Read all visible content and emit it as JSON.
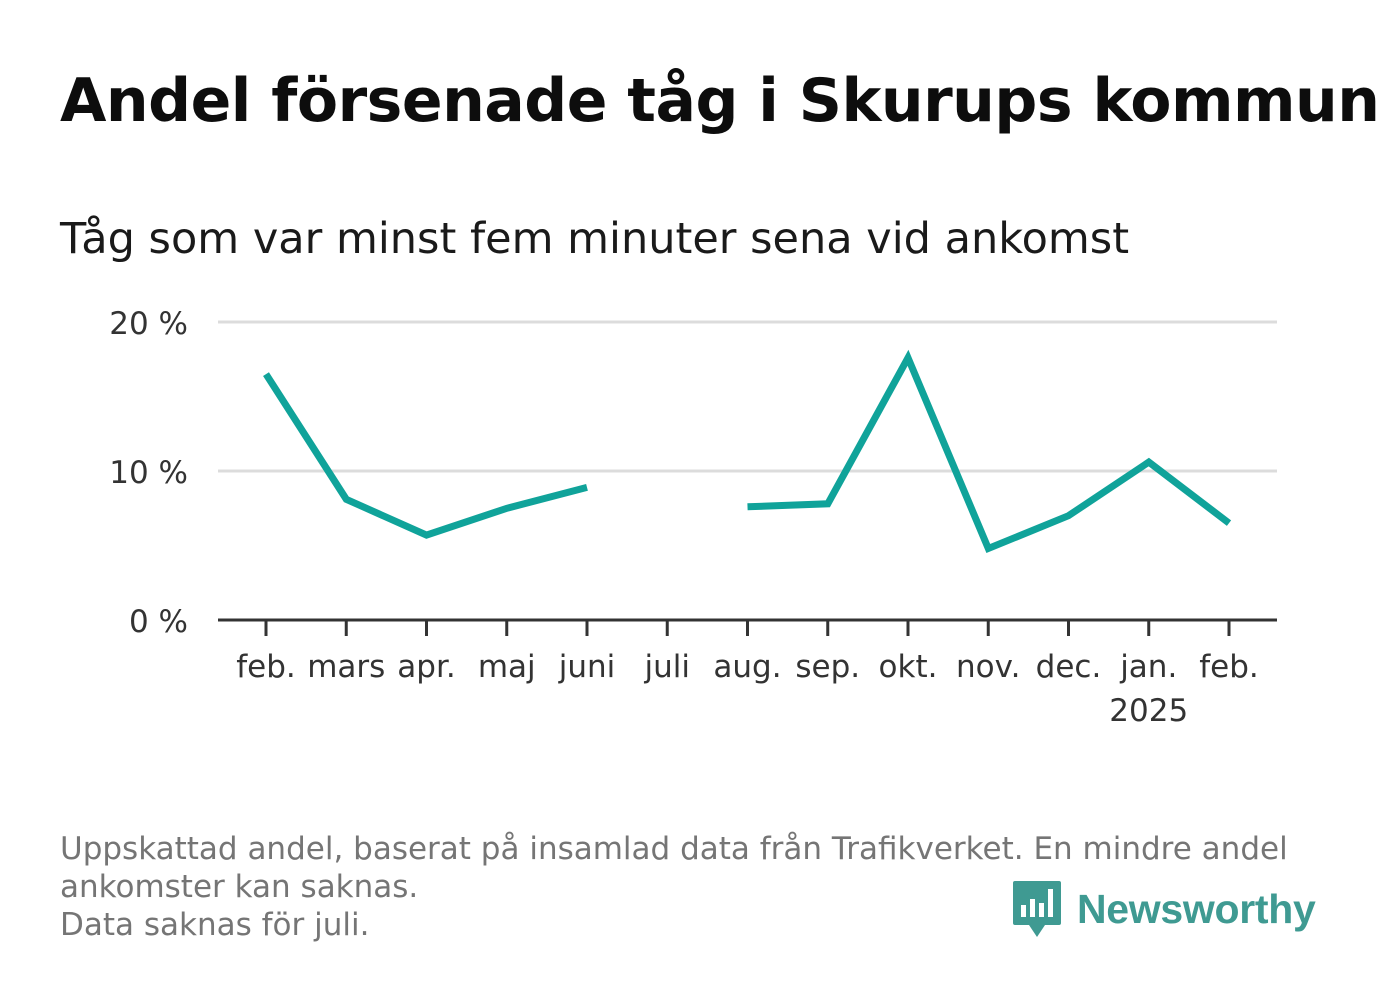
{
  "title": "Andel försenade tåg i Skurups kommun",
  "subtitle": "Tåg som var minst fem minuter sena vid ankomst",
  "footnote": [
    "Uppskattad andel, baserat på insamlad data från Trafikverket. En mindre andel",
    "ankomster kan saknas.",
    "Data saknas för juli."
  ],
  "logo": {
    "text": "Newsworthy",
    "icon": "newsworthy-bar-chart-icon",
    "color": "#3f9a92"
  },
  "chart_data": {
    "type": "line",
    "categories": [
      "feb.",
      "mars",
      "apr.",
      "maj",
      "juni",
      "juli",
      "aug.",
      "sep.",
      "okt.",
      "nov.",
      "dec.",
      "jan.",
      "feb."
    ],
    "category_sublabels": [
      "",
      "",
      "",
      "",
      "",
      "",
      "",
      "",
      "",
      "",
      "",
      "2025",
      ""
    ],
    "series": [
      {
        "values": [
          16.5,
          8.1,
          5.7,
          7.5,
          8.9,
          null,
          7.6,
          7.8,
          17.6,
          4.8,
          7.0,
          10.6,
          6.5
        ],
        "color": "#10a39a"
      }
    ],
    "yticks": [
      0,
      10,
      20
    ],
    "ytick_labels": [
      "0 %",
      "10 %",
      "20 %"
    ],
    "ylim": [
      0,
      20
    ],
    "grid": true,
    "legend": "none"
  }
}
